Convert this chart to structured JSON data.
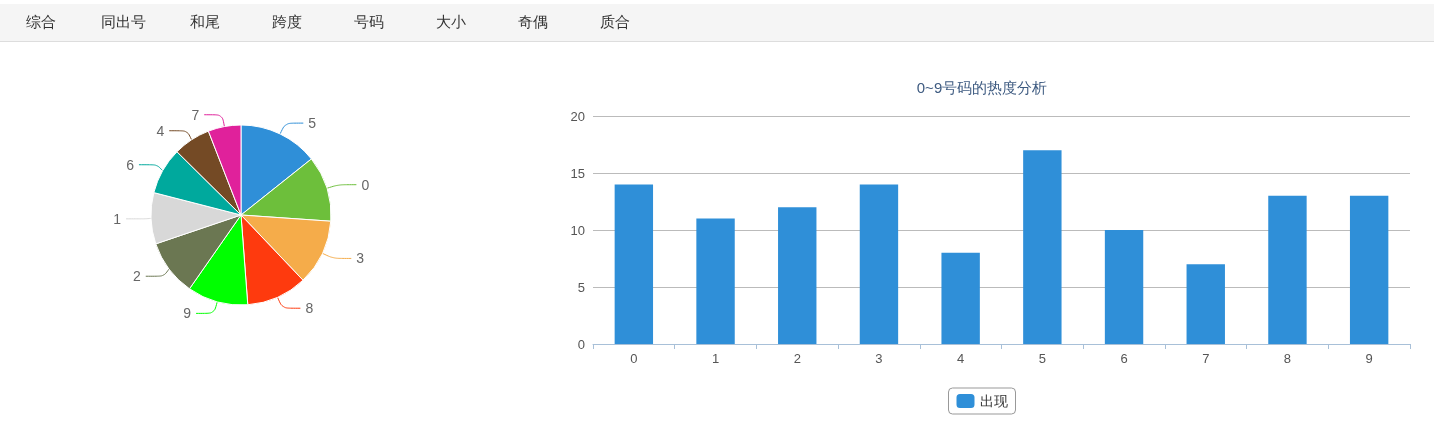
{
  "chart_data": [
    {
      "type": "other",
      "annotations": [
        "综合",
        "同出号",
        "和尾",
        "跨度",
        "号码",
        "大小",
        "奇偶",
        "质合"
      ]
    },
    {
      "type": "pie",
      "categories": [
        "5",
        "0",
        "3",
        "8",
        "9",
        "2",
        "1",
        "6",
        "4",
        "7"
      ],
      "values": [
        14.3,
        11.8,
        11.8,
        10.9,
        10.9,
        10.1,
        9.2,
        8.4,
        6.7,
        5.9
      ],
      "colors": [
        "#2f8fd8",
        "#6dbf3b",
        "#f5ac4a",
        "#fe3a0e",
        "#00ff00",
        "#6b7752",
        "#d8d8d8",
        "#00a99d",
        "#744a25",
        "#e0219b"
      ]
    },
    {
      "type": "bar",
      "title": "0~9号码的热度分析",
      "categories": [
        "0",
        "1",
        "2",
        "3",
        "4",
        "5",
        "6",
        "7",
        "8",
        "9"
      ],
      "series": [
        {
          "name": "出现",
          "color": "#2f8fd8",
          "values": [
            14,
            11,
            12,
            14,
            8,
            17,
            10,
            7,
            13,
            13
          ]
        }
      ],
      "ylim": [
        0,
        20
      ],
      "yticks": [
        0,
        5,
        10,
        15,
        20
      ],
      "grid": "y",
      "legend": "bottom"
    }
  ]
}
